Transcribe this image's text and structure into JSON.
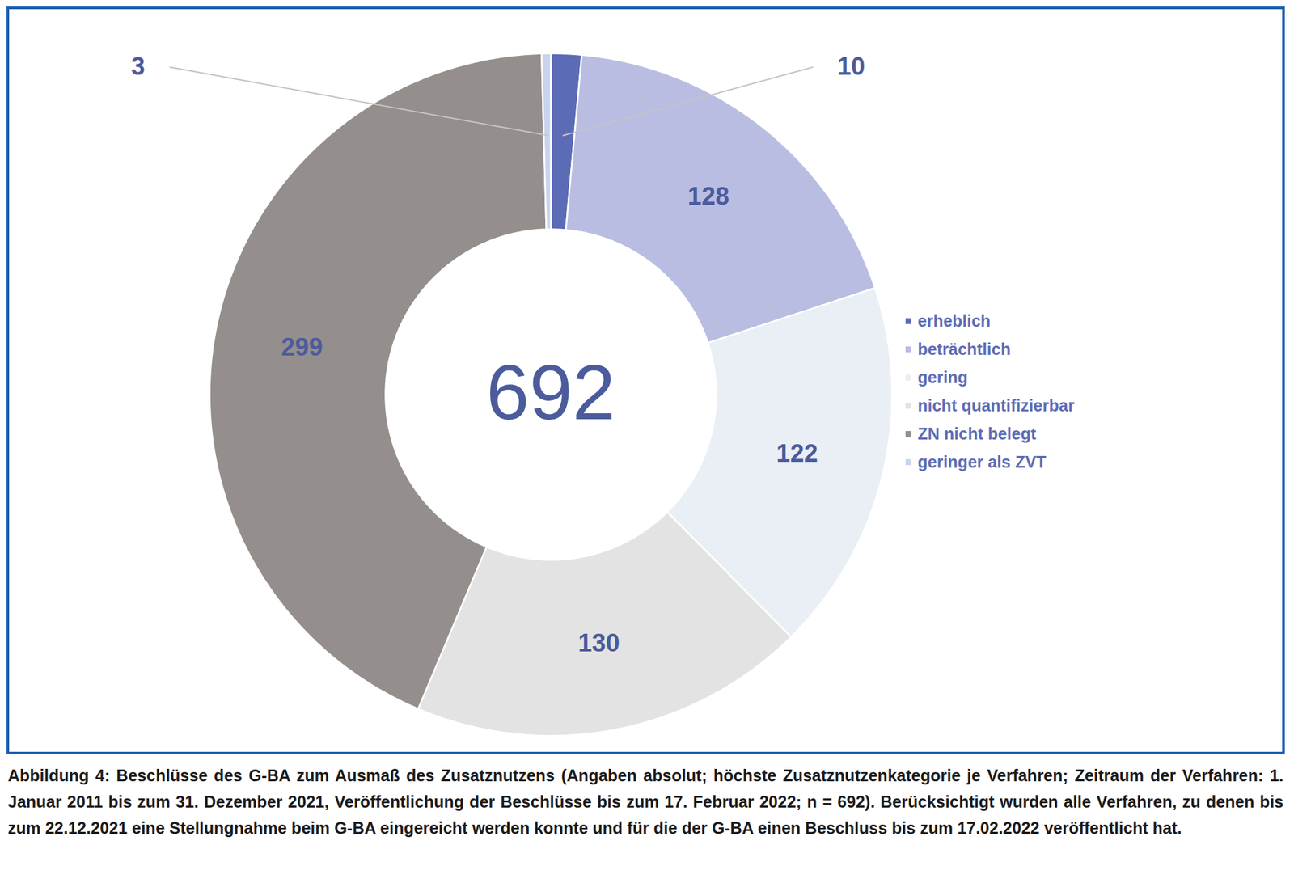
{
  "chart_data": {
    "type": "donut",
    "categories": [
      "erheblich",
      "beträchtlich",
      "gering",
      "nicht quantifizierbar",
      "ZN nicht belegt",
      "geringer als ZVT"
    ],
    "values": [
      10,
      128,
      122,
      130,
      299,
      3
    ],
    "colors": [
      "#5c6bb5",
      "#b9bde1",
      "#e9eff5",
      "#e3e3e3",
      "#948f8c",
      "#c8d4ef"
    ],
    "total": 692,
    "data_labels": true,
    "legend": "right",
    "caption": "Abbildung 4: Beschlüsse des G-BA zum Ausmaß des Zusatznutzens (Angaben absolut; höchste Zusatznutzenkategorie je Verfahren; Zeitraum der Verfahren: 1. Januar 2011 bis zum 31. Dezember 2021, Veröffentlichung der Beschlüsse bis zum 17. Februar 2022; n = 692). Berücksichtigt wurden alle Verfahren, zu denen bis zum 22.12.2021 eine Stellungnahme beim G-BA eingereicht werden konnte und für die der G-BA einen Beschluss bis zum 17.02.2022 veröffentlicht hat."
  }
}
